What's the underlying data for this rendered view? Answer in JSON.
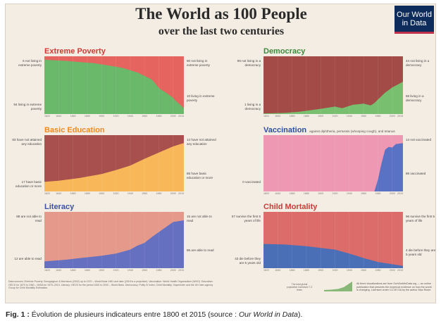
{
  "title": "The World as 100 People",
  "subtitle": "over the last two centuries",
  "logo": {
    "line1": "Our World",
    "line2": "in Data"
  },
  "caption": {
    "prefix": "Fig. 1 :",
    "text": " Évolution de plusieurs indicateurs entre 1800 et 2015 (source : ",
    "source_name": "Our World in Data",
    "suffix": ")."
  },
  "colors": {
    "poverty_top": "#e6645f",
    "poverty_bottom": "#6ab86a",
    "education_top": "#a8504e",
    "education_bottom": "#f8b85a",
    "literacy_top": "#e4998a",
    "literacy_bottom": "#6670c0",
    "democracy_top": "#a24b47",
    "democracy_bottom": "#78c070",
    "vaccination_top": "#ee98b4",
    "vaccination_bottom": "#5a72c4",
    "mortality_top": "#dc6c6a",
    "mortality_bottom": "#4b6fb6"
  },
  "x_ticks": [
    "1820",
    "1840",
    "1860",
    "1880",
    "1900",
    "1920",
    "1940",
    "1960",
    "1980",
    "2000",
    "2015"
  ],
  "notes": "Data sources: Extreme Poverty: Bourguignon & Morrisson (2002) up to 1970 – World Bank 1981 and later (2015 is a projection). Vaccination: World Health Organization (WHO). Education: OECD for 1870 to 1960 – IIASA for 1970–2010. Literacy: OECD for the period 1820 to 2000 – World Bank. Democracy: Polity IV index; Child Mortality: Gapminder and the UN Inter-agency Group for Child Mortality Estimation.",
  "small_chart_label": "The total global population increased 7.3 times",
  "sources": "All three visualizations are from OurWorldInData.org — an online publication that presents the empirical evidence on how the world is changing. Licensed under CC-BY-SA by the author Max Roser.",
  "chart_data": [
    {
      "type": "area",
      "title": "Extreme Poverty",
      "color": "#cc3b35",
      "x": [
        1820,
        1850,
        1870,
        1890,
        1910,
        1929,
        1950,
        1960,
        1970,
        1981,
        1990,
        1999,
        2005,
        2010,
        2015
      ],
      "series": [
        {
          "values": [
            94,
            92,
            90,
            88,
            84,
            80,
            72,
            66,
            60,
            44,
            37,
            29,
            21,
            16,
            10
          ]
        }
      ],
      "ylim": [
        0,
        100
      ],
      "labels": {
        "left_top": "6 not living in extreme poverty",
        "left_bottom": "94 living in extreme poverty",
        "right_top": "90 not living in extreme poverty",
        "right_bottom": "10 living in extreme poverty"
      }
    },
    {
      "type": "area",
      "title": "Basic Education",
      "color": "#ee8a1f",
      "x": [
        1820,
        1840,
        1870,
        1900,
        1920,
        1940,
        1960,
        1980,
        2000,
        2015
      ],
      "series": [
        {
          "values": [
            17,
            19,
            24,
            31,
            38,
            46,
            58,
            69,
            80,
            86
          ]
        }
      ],
      "ylim": [
        0,
        100
      ],
      "labels": {
        "left_top": "83 have not attained any education",
        "left_bottom": "17 have basic education or more",
        "right_top": "14 have not attained any education",
        "right_bottom": "86 have basic education or more"
      }
    },
    {
      "type": "area",
      "title": "Literacy",
      "color": "#3c4fa0",
      "x": [
        1820,
        1850,
        1870,
        1900,
        1920,
        1940,
        1950,
        1960,
        1970,
        1980,
        2000,
        2015
      ],
      "series": [
        {
          "values": [
            12,
            15,
            18,
            22,
            26,
            33,
            40,
            45,
            55,
            64,
            82,
            85
          ]
        }
      ],
      "ylim": [
        0,
        100
      ],
      "labels": {
        "left_top": "88 are not able to read",
        "left_bottom": "12 are able to read",
        "right_top": "15 are not able to read",
        "right_bottom": "85 are able to read"
      }
    },
    {
      "type": "area",
      "title": "Democracy",
      "color": "#3c8a3c",
      "x": [
        1820,
        1850,
        1870,
        1900,
        1920,
        1930,
        1945,
        1960,
        1970,
        1975,
        1990,
        2000,
        2015
      ],
      "series": [
        {
          "values": [
            1,
            2,
            4,
            9,
            13,
            10,
            16,
            18,
            15,
            19,
            37,
            46,
            56
          ]
        }
      ],
      "ylim": [
        0,
        100
      ],
      "labels": {
        "left_top": "99 not living in a democracy",
        "left_bottom": "1 living in a democracy",
        "right_top": "44 not living in a democracy",
        "right_bottom": "56 living in a democracy"
      }
    },
    {
      "type": "area",
      "title": "Vaccination",
      "subtitle": "against diphtheria, pertussis (whooping cough), and tetanus",
      "color": "#2c4ea0",
      "x": [
        1820,
        1975,
        1980,
        1985,
        1990,
        1995,
        2000,
        2005,
        2010,
        2015
      ],
      "series": [
        {
          "values": [
            0,
            0,
            21,
            50,
            74,
            79,
            78,
            84,
            85,
            86
          ]
        }
      ],
      "ylim": [
        0,
        100
      ],
      "labels": {
        "left_bottom": "0 vaccinated",
        "right_top": "14 not vaccinated",
        "right_bottom": "86 vaccinated"
      }
    },
    {
      "type": "area",
      "title": "Child Mortality",
      "color": "#cc3b35",
      "x": [
        1820,
        1850,
        1880,
        1900,
        1920,
        1940,
        1960,
        1980,
        2000,
        2015
      ],
      "series": [
        {
          "values": [
            43,
            42,
            39,
            36,
            33,
            26,
            18,
            11,
            7,
            4
          ]
        }
      ],
      "ylim": [
        0,
        100
      ],
      "labels": {
        "left_top": "57 survive the first 5 years of life",
        "left_bottom": "43 die before they are 5 years old",
        "right_top": "96 survive the first 5 years of life",
        "right_bottom": "4 die before they are 5 years old"
      }
    }
  ]
}
